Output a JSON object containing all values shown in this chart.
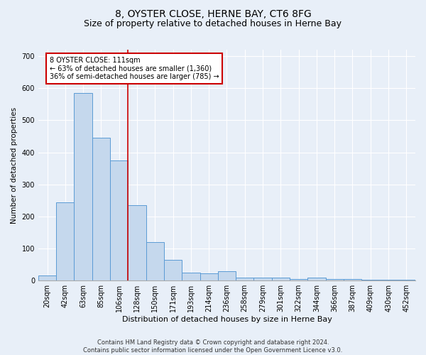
{
  "title": "8, OYSTER CLOSE, HERNE BAY, CT6 8FG",
  "subtitle": "Size of property relative to detached houses in Herne Bay",
  "xlabel": "Distribution of detached houses by size in Herne Bay",
  "ylabel": "Number of detached properties",
  "footer_line1": "Contains HM Land Registry data © Crown copyright and database right 2024.",
  "footer_line2": "Contains public sector information licensed under the Open Government Licence v3.0.",
  "bar_labels": [
    "20sqm",
    "42sqm",
    "63sqm",
    "85sqm",
    "106sqm",
    "128sqm",
    "150sqm",
    "171sqm",
    "193sqm",
    "214sqm",
    "236sqm",
    "258sqm",
    "279sqm",
    "301sqm",
    "322sqm",
    "344sqm",
    "366sqm",
    "387sqm",
    "409sqm",
    "430sqm",
    "452sqm"
  ],
  "bar_values": [
    15,
    245,
    585,
    445,
    375,
    235,
    120,
    65,
    25,
    22,
    30,
    10,
    9,
    9,
    5,
    9,
    5,
    5,
    3,
    3,
    3
  ],
  "bar_color": "#c5d8ed",
  "bar_edge_color": "#5b9bd5",
  "red_line_x": 4.5,
  "red_line_color": "#cc0000",
  "annotation_text": "8 OYSTER CLOSE: 111sqm\n← 63% of detached houses are smaller (1,360)\n36% of semi-detached houses are larger (785) →",
  "annotation_box_color": "#ffffff",
  "annotation_box_edge": "#cc0000",
  "ylim": [
    0,
    720
  ],
  "yticks": [
    0,
    100,
    200,
    300,
    400,
    500,
    600,
    700
  ],
  "background_color": "#e8eff8",
  "plot_background": "#e8eff8",
  "title_fontsize": 10,
  "subtitle_fontsize": 9,
  "xlabel_fontsize": 8,
  "ylabel_fontsize": 7.5,
  "tick_fontsize": 7,
  "grid_color": "#ffffff",
  "font_family": "DejaVu Sans"
}
